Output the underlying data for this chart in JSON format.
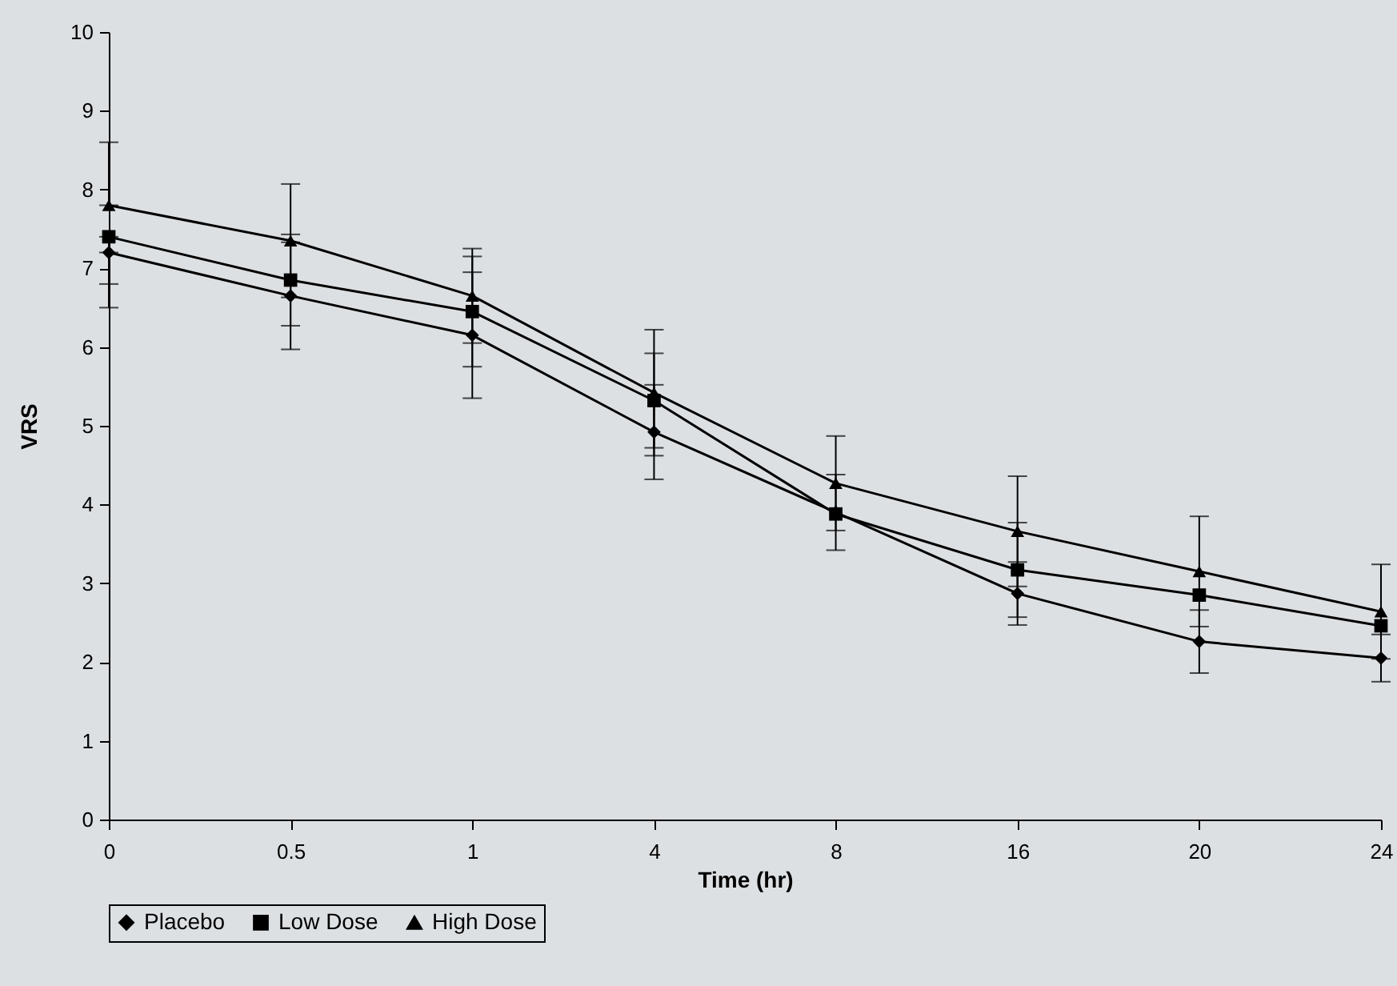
{
  "chart_data": {
    "type": "line",
    "xlabel": "Time (hr)",
    "ylabel": "VRS",
    "categories": [
      "0",
      "0.5",
      "1",
      "4",
      "8",
      "16",
      "20",
      "24"
    ],
    "ylim": [
      0,
      10
    ],
    "yticks": [
      0,
      1,
      2,
      3,
      4,
      5,
      6,
      7,
      8,
      9,
      10
    ],
    "grid": false,
    "legend": "bottom",
    "line_style": "solid",
    "series": [
      {
        "name": "Placebo",
        "color": "#000000",
        "marker": "diamond",
        "values": [
          7.2,
          6.65,
          6.15,
          4.92,
          3.9,
          2.87,
          2.26,
          2.05
        ],
        "errors": [
          [
            6.5,
            7.2
          ],
          0.68,
          0.8,
          0.6,
          0.48,
          0.4,
          0.4,
          0.3
        ]
      },
      {
        "name": "Low Dose",
        "color": "#000000",
        "marker": "square",
        "values": [
          7.4,
          6.85,
          6.45,
          5.32,
          3.88,
          3.17,
          2.85,
          2.46
        ],
        "errors": [
          [
            6.8,
            7.4
          ],
          0.58,
          0.7,
          0.6,
          null,
          0.6,
          null,
          null
        ]
      },
      {
        "name": "High Dose",
        "color": "#000000",
        "marker": "triangle",
        "values": [
          7.8,
          7.35,
          6.65,
          5.42,
          4.27,
          3.66,
          3.15,
          2.64
        ],
        "errors": [
          [
            7.8,
            8.6
          ],
          0.72,
          0.6,
          0.8,
          0.6,
          0.7,
          0.7,
          0.6
        ]
      }
    ]
  }
}
